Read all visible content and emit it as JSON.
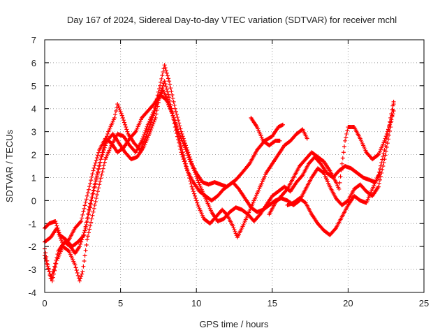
{
  "chart_data": {
    "type": "scatter",
    "title": "Day 167 of 2024, Sidereal Day-to-day VTEC variation (SDTVAR) for receiver mchl",
    "xlabel": "GPS time / hours",
    "ylabel": "SDTVAR / TECUs",
    "xlim": [
      0,
      25
    ],
    "ylim": [
      -4,
      7
    ],
    "xticks": [
      "0",
      "5",
      "10",
      "15",
      "20",
      "25"
    ],
    "yticks": [
      "-4",
      "-3",
      "-2",
      "-1",
      "0",
      "1",
      "2",
      "3",
      "4",
      "5",
      "6",
      "7"
    ],
    "grid": true,
    "marker": "+",
    "color": "#ff0000",
    "series": [
      {
        "points": [
          [
            0.0,
            -2.1
          ],
          [
            0.2,
            -2.8
          ],
          [
            0.4,
            -3.4
          ],
          [
            0.6,
            -3.0
          ],
          [
            0.9,
            -2.2
          ],
          [
            1.3,
            -1.8
          ],
          [
            1.7,
            -2.0
          ],
          [
            2.0,
            -2.3
          ],
          [
            2.3,
            -2.0
          ],
          [
            2.7,
            -1.2
          ],
          [
            3.1,
            0.0
          ],
          [
            3.5,
            1.2
          ],
          [
            3.9,
            2.4
          ],
          [
            4.2,
            3.0
          ],
          [
            4.6,
            3.6
          ],
          [
            4.8,
            4.2
          ],
          [
            5.1,
            3.7
          ],
          [
            5.5,
            2.9
          ],
          [
            5.9,
            2.5
          ],
          [
            6.3,
            2.2
          ],
          [
            6.7,
            2.8
          ],
          [
            7.0,
            3.4
          ],
          [
            7.4,
            4.2
          ],
          [
            7.8,
            4.8
          ],
          [
            8.1,
            4.4
          ],
          [
            8.5,
            3.6
          ],
          [
            8.9,
            2.6
          ],
          [
            9.3,
            1.6
          ],
          [
            9.7,
            0.6
          ],
          [
            10.1,
            -0.2
          ],
          [
            10.5,
            -0.8
          ],
          [
            10.9,
            -1.0
          ],
          [
            11.3,
            -0.7
          ],
          [
            11.7,
            -0.4
          ],
          [
            12.0,
            -0.6
          ],
          [
            12.4,
            -1.1
          ],
          [
            12.7,
            -1.6
          ],
          [
            13.0,
            -1.2
          ],
          [
            13.4,
            -0.6
          ],
          [
            13.8,
            0.0
          ],
          [
            14.2,
            0.6
          ],
          [
            14.6,
            1.2
          ],
          [
            15.0,
            1.6
          ],
          [
            15.4,
            2.0
          ],
          [
            15.8,
            2.4
          ],
          [
            16.2,
            2.6
          ],
          [
            16.6,
            2.9
          ],
          [
            17.0,
            3.1
          ],
          [
            17.3,
            2.7
          ]
        ]
      },
      {
        "points": [
          [
            0.0,
            -1.2
          ],
          [
            0.3,
            -1.0
          ],
          [
            0.7,
            -0.9
          ],
          [
            1.0,
            -1.5
          ],
          [
            1.4,
            -1.7
          ],
          [
            1.8,
            -2.0
          ],
          [
            2.2,
            -1.8
          ],
          [
            2.6,
            -1.5
          ],
          [
            2.9,
            -0.4
          ],
          [
            3.3,
            0.7
          ],
          [
            3.7,
            1.8
          ],
          [
            4.1,
            2.6
          ],
          [
            4.5,
            2.9
          ],
          [
            4.9,
            2.5
          ],
          [
            5.3,
            2.1
          ],
          [
            5.7,
            1.8
          ],
          [
            6.1,
            1.9
          ],
          [
            6.5,
            2.3
          ],
          [
            6.9,
            2.9
          ],
          [
            7.3,
            3.6
          ],
          [
            7.6,
            4.6
          ],
          [
            7.9,
            5.2
          ],
          [
            8.2,
            4.5
          ],
          [
            8.6,
            3.2
          ],
          [
            9.0,
            2.1
          ],
          [
            9.4,
            1.3
          ],
          [
            9.8,
            0.8
          ],
          [
            10.2,
            0.4
          ],
          [
            10.6,
            0.2
          ],
          [
            11.0,
            0.0
          ],
          [
            11.4,
            0.2
          ],
          [
            11.8,
            0.5
          ],
          [
            12.2,
            0.7
          ],
          [
            12.6,
            0.9
          ],
          [
            13.0,
            1.2
          ],
          [
            13.5,
            1.6
          ],
          [
            14.0,
            2.2
          ],
          [
            14.5,
            2.6
          ],
          [
            15.0,
            2.8
          ],
          [
            15.4,
            3.2
          ],
          [
            15.7,
            3.3
          ]
        ]
      },
      {
        "points": [
          [
            0.0,
            -2.4
          ],
          [
            0.3,
            -3.1
          ],
          [
            0.5,
            -3.5
          ],
          [
            0.8,
            -2.6
          ],
          [
            1.2,
            -2.0
          ],
          [
            1.6,
            -2.2
          ],
          [
            2.0,
            -2.8
          ],
          [
            2.3,
            -3.5
          ],
          [
            2.5,
            -3.1
          ],
          [
            2.8,
            -1.7
          ],
          [
            3.2,
            -0.5
          ],
          [
            3.6,
            0.7
          ],
          [
            4.0,
            1.8
          ],
          [
            4.4,
            2.4
          ],
          [
            4.8,
            2.9
          ],
          [
            5.2,
            2.8
          ],
          [
            5.6,
            2.4
          ],
          [
            6.0,
            2.1
          ],
          [
            6.4,
            2.6
          ],
          [
            6.8,
            3.3
          ],
          [
            7.2,
            3.9
          ],
          [
            7.6,
            5.0
          ],
          [
            7.9,
            5.9
          ],
          [
            8.2,
            5.2
          ],
          [
            8.6,
            4.0
          ],
          [
            9.0,
            3.0
          ],
          [
            9.4,
            2.2
          ],
          [
            9.8,
            1.4
          ],
          [
            10.2,
            0.7
          ],
          [
            10.6,
            0.1
          ],
          [
            11.0,
            -0.5
          ],
          [
            11.4,
            -0.9
          ],
          [
            11.8,
            -0.8
          ],
          [
            12.2,
            -0.5
          ],
          [
            12.6,
            -0.3
          ],
          [
            13.0,
            -0.4
          ],
          [
            13.4,
            -0.6
          ],
          [
            13.8,
            -0.9
          ],
          [
            14.2,
            -0.6
          ],
          [
            14.6,
            -0.2
          ],
          [
            15.0,
            0.2
          ],
          [
            15.4,
            0.4
          ],
          [
            15.8,
            0.6
          ],
          [
            16.2,
            0.4
          ],
          [
            16.6,
            0.8
          ],
          [
            17.0,
            1.1
          ],
          [
            17.4,
            1.6
          ],
          [
            17.8,
            1.9
          ],
          [
            18.2,
            1.6
          ],
          [
            18.6,
            1.2
          ],
          [
            19.0,
            1.0
          ],
          [
            19.4,
            1.3
          ],
          [
            19.8,
            1.5
          ],
          [
            20.2,
            1.4
          ],
          [
            20.6,
            1.2
          ],
          [
            21.0,
            1.0
          ],
          [
            21.4,
            0.9
          ],
          [
            21.8,
            0.8
          ],
          [
            22.1,
            1.2
          ]
        ]
      },
      {
        "points": [
          [
            0.0,
            -1.8
          ],
          [
            0.4,
            -1.6
          ],
          [
            0.8,
            -1.2
          ],
          [
            1.2,
            -1.9
          ],
          [
            1.6,
            -1.7
          ],
          [
            2.0,
            -1.2
          ],
          [
            2.4,
            -0.9
          ],
          [
            2.8,
            0.2
          ],
          [
            3.2,
            1.3
          ],
          [
            3.6,
            2.2
          ],
          [
            4.0,
            2.7
          ],
          [
            4.4,
            2.5
          ],
          [
            4.8,
            2.1
          ],
          [
            5.2,
            2.3
          ],
          [
            5.6,
            2.7
          ],
          [
            6.0,
            3.0
          ],
          [
            6.4,
            3.6
          ],
          [
            6.8,
            3.9
          ],
          [
            7.2,
            4.2
          ],
          [
            7.6,
            4.6
          ],
          [
            8.0,
            4.4
          ],
          [
            8.4,
            3.8
          ],
          [
            8.8,
            3.0
          ],
          [
            9.2,
            2.4
          ],
          [
            9.6,
            1.7
          ],
          [
            10.0,
            1.2
          ],
          [
            10.4,
            0.8
          ],
          [
            10.8,
            0.7
          ],
          [
            11.2,
            0.8
          ],
          [
            11.6,
            0.7
          ],
          [
            12.0,
            0.6
          ],
          [
            12.4,
            0.8
          ],
          [
            12.8,
            0.5
          ],
          [
            13.2,
            0.1
          ],
          [
            13.6,
            -0.3
          ],
          [
            14.0,
            -0.5
          ],
          [
            14.4,
            -0.4
          ],
          [
            14.8,
            -0.2
          ],
          [
            15.2,
            0.0
          ],
          [
            15.6,
            0.1
          ],
          [
            16.0,
            0.0
          ],
          [
            16.4,
            -0.2
          ],
          [
            16.8,
            0.0
          ],
          [
            17.2,
            0.5
          ],
          [
            17.6,
            1.0
          ],
          [
            18.0,
            1.4
          ],
          [
            18.4,
            1.2
          ],
          [
            18.8,
            0.6
          ],
          [
            19.2,
            0.1
          ],
          [
            19.6,
            -0.2
          ],
          [
            20.0,
            0.0
          ],
          [
            20.4,
            0.5
          ],
          [
            20.8,
            0.7
          ],
          [
            21.2,
            0.4
          ],
          [
            21.6,
            0.2
          ],
          [
            22.0,
            0.6
          ],
          [
            22.4,
            1.8
          ],
          [
            22.8,
            3.2
          ],
          [
            23.0,
            4.2
          ]
        ]
      },
      {
        "points": [
          [
            13.6,
            3.6
          ],
          [
            14.0,
            3.2
          ],
          [
            14.4,
            2.6
          ],
          [
            14.8,
            2.4
          ],
          [
            15.2,
            2.6
          ],
          [
            15.5,
            2.6
          ]
        ]
      },
      {
        "points": [
          [
            16.0,
            -0.2
          ],
          [
            16.4,
            -0.1
          ],
          [
            16.8,
            0.1
          ],
          [
            17.2,
            -0.1
          ],
          [
            17.6,
            -0.6
          ],
          [
            18.0,
            -1.0
          ],
          [
            18.4,
            -1.3
          ],
          [
            18.8,
            -1.5
          ],
          [
            19.2,
            -1.2
          ],
          [
            19.6,
            -0.7
          ],
          [
            20.0,
            -0.2
          ],
          [
            20.4,
            0.2
          ],
          [
            20.8,
            0.0
          ],
          [
            21.2,
            -0.1
          ],
          [
            21.6,
            0.5
          ],
          [
            22.0,
            1.1
          ],
          [
            22.4,
            2.2
          ],
          [
            22.8,
            3.6
          ],
          [
            23.0,
            4.3
          ]
        ]
      },
      {
        "points": [
          [
            14.8,
            -0.6
          ],
          [
            15.2,
            -0.1
          ],
          [
            15.6,
            0.2
          ],
          [
            16.0,
            0.5
          ],
          [
            16.4,
            1.0
          ],
          [
            16.8,
            1.5
          ],
          [
            17.2,
            1.8
          ],
          [
            17.6,
            2.1
          ],
          [
            18.0,
            1.9
          ],
          [
            18.4,
            1.7
          ],
          [
            18.8,
            1.3
          ],
          [
            19.2,
            0.8
          ],
          [
            19.4,
            0.5
          ],
          [
            19.6,
            1.6
          ],
          [
            19.8,
            2.6
          ],
          [
            20.0,
            3.2
          ],
          [
            20.4,
            3.2
          ],
          [
            20.8,
            2.7
          ],
          [
            21.2,
            2.1
          ],
          [
            21.6,
            1.8
          ],
          [
            22.0,
            2.0
          ],
          [
            22.4,
            2.6
          ],
          [
            22.8,
            3.4
          ],
          [
            23.0,
            3.9
          ]
        ]
      }
    ]
  }
}
